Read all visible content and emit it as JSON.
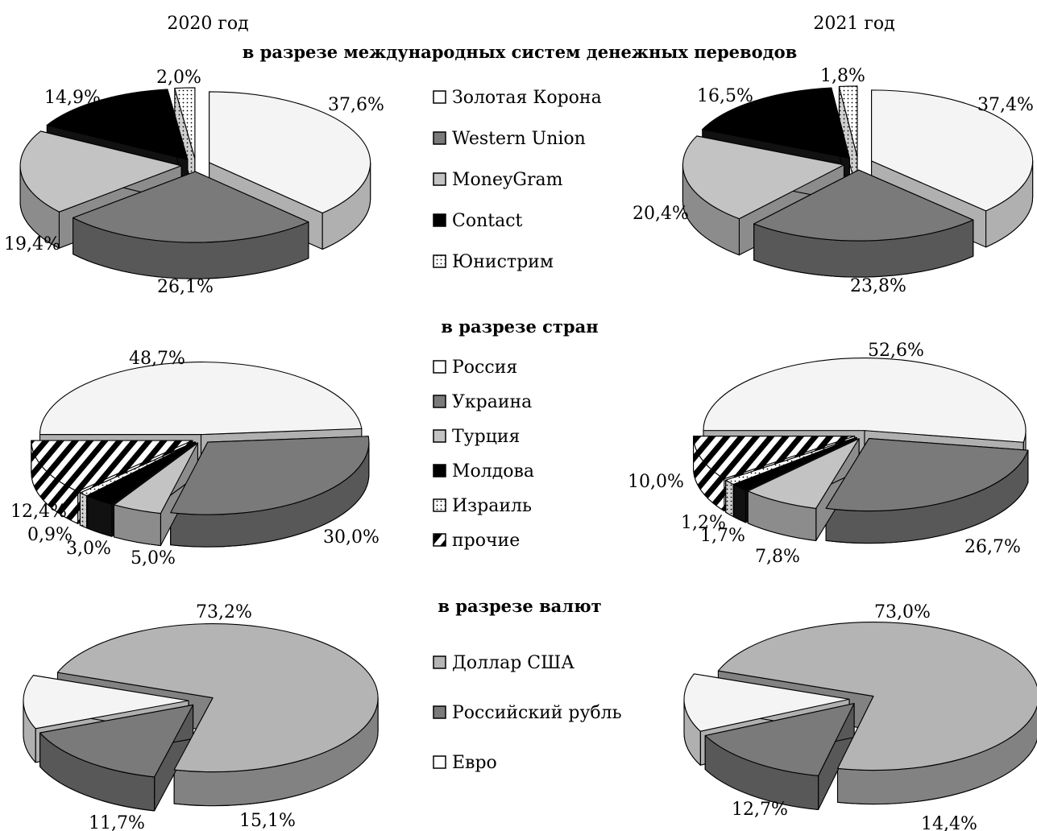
{
  "year_labels": [
    "2020 год",
    "2021 год"
  ],
  "chart_data": [
    {
      "type": "pie",
      "title": "в разрезе международных систем денежных переводов",
      "categories": [
        "Золотая Корона",
        "Western Union",
        "MoneyGram",
        "Contact",
        "Юнистрим"
      ],
      "colors": [
        "#f4f4f4",
        "#7a7a7a",
        "#c3c3c3",
        "#000000",
        "dots"
      ],
      "series": [
        {
          "name": "2020 год",
          "values": [
            37.6,
            26.1,
            19.4,
            14.9,
            2.0
          ],
          "labels": [
            "37,6%",
            "26,1%",
            "19,4%",
            "14,9%",
            "2,0%"
          ]
        },
        {
          "name": "2021 год",
          "values": [
            37.4,
            23.8,
            20.4,
            16.5,
            1.8
          ],
          "labels": [
            "37,4%",
            "23,8%",
            "20,4%",
            "16,5%",
            "1,8%"
          ]
        }
      ]
    },
    {
      "type": "pie",
      "title": "в разрезе стран",
      "categories": [
        "Россия",
        "Украина",
        "Турция",
        "Молдова",
        "Израиль",
        "прочие"
      ],
      "colors": [
        "#f4f4f4",
        "#7a7a7a",
        "#c3c3c3",
        "#000000",
        "dots",
        "stripes"
      ],
      "series": [
        {
          "name": "2020 год",
          "values": [
            48.7,
            30.0,
            5.0,
            3.0,
            0.9,
            12.4
          ],
          "labels": [
            "48,7%",
            "30,0%",
            "5,0%",
            "3,0%",
            "0,9%",
            "12,4%"
          ]
        },
        {
          "name": "2021 год",
          "values": [
            52.6,
            26.7,
            7.8,
            1.7,
            1.2,
            10.0
          ],
          "labels": [
            "52,6%",
            "26,7%",
            "7,8%",
            "1,7%",
            "1,2%",
            "10,0%"
          ]
        }
      ]
    },
    {
      "type": "pie",
      "title": "в разрезе валют",
      "categories": [
        "Доллар США",
        "Российский рубль",
        "Евро"
      ],
      "colors": [
        "#b4b4b4",
        "#7a7a7a",
        "#f4f4f4"
      ],
      "series": [
        {
          "name": "2020 год",
          "values": [
            73.2,
            15.1,
            11.7
          ],
          "labels": [
            "73,2%",
            "15,1%",
            "11,7%"
          ]
        },
        {
          "name": "2021 год",
          "values": [
            73.0,
            14.4,
            12.7
          ],
          "labels": [
            "73,0%",
            "14,4%",
            "12,7%"
          ]
        }
      ]
    }
  ]
}
